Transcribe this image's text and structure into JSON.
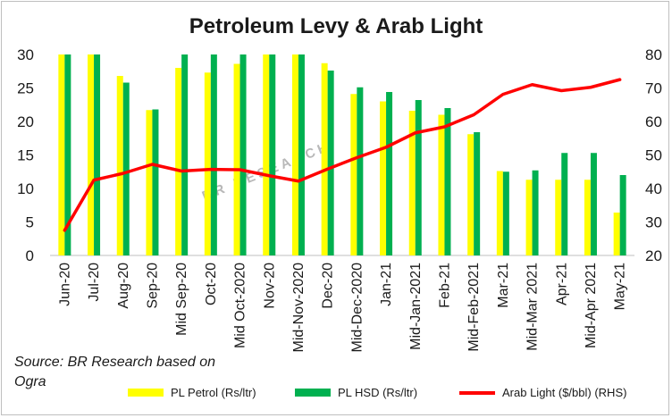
{
  "chart_data": {
    "type": "bar",
    "title": "Petroleum Levy & Arab Light",
    "categories": [
      "Jun-20",
      "Jul-20",
      "Aug-20",
      "Sep-20",
      "Mid Sep-20",
      "Oct-20",
      "Mid Oct-2020",
      "Nov-20",
      "Mid-Nov-2020",
      "Dec-20",
      "Mid-Dec-2020",
      "Jan-21",
      "Mid-Jan-2021",
      "Feb-21",
      "Mid-Feb-2021",
      "Mar-21",
      "Mid-Mar 2021",
      "Apr-21",
      "Mid-Apr 2021",
      "May-21"
    ],
    "series": [
      {
        "name": "PL Petrol (Rs/ltr)",
        "type": "bar",
        "axis": "left",
        "color": "#ffff00",
        "values": [
          30,
          30,
          26.8,
          21.7,
          28,
          27.3,
          28.6,
          30,
          30,
          28.7,
          24.1,
          23,
          21.6,
          21,
          18.1,
          12.6,
          11.3,
          11.3,
          11.3,
          6.4
        ]
      },
      {
        "name": "PL HSD (Rs/ltr)",
        "type": "bar",
        "axis": "left",
        "color": "#00b050",
        "values": [
          30,
          30,
          25.8,
          21.8,
          30,
          30,
          30,
          30,
          30,
          27.6,
          25.1,
          24.4,
          23.2,
          22,
          18.4,
          12.5,
          12.7,
          15.3,
          15.3,
          12
        ]
      },
      {
        "name": "Arab Light ($/bbl) (RHS)",
        "type": "line",
        "axis": "right",
        "color": "#ff0000",
        "values": [
          27.5,
          42.5,
          44.5,
          47.2,
          45.2,
          45.7,
          45.6,
          43.8,
          42.2,
          45.8,
          49.2,
          52.3,
          56.6,
          58.4,
          62,
          68.1,
          71,
          69.2,
          70.2,
          72.5
        ]
      }
    ],
    "y_left": {
      "min": 0,
      "max": 30,
      "ticks": [
        "0",
        "5",
        "10",
        "15",
        "20",
        "25",
        "30"
      ]
    },
    "y_right": {
      "min": 20,
      "max": 80,
      "ticks": [
        "20",
        "30",
        "40",
        "50",
        "60",
        "70",
        "80"
      ]
    },
    "grid": false,
    "legend_position": "bottom"
  },
  "watermark": "BR RESEARCH",
  "source": "Source: BR Research based on Ogra",
  "source_line1": "Source: BR Research based on",
  "source_line2": "Ogra"
}
